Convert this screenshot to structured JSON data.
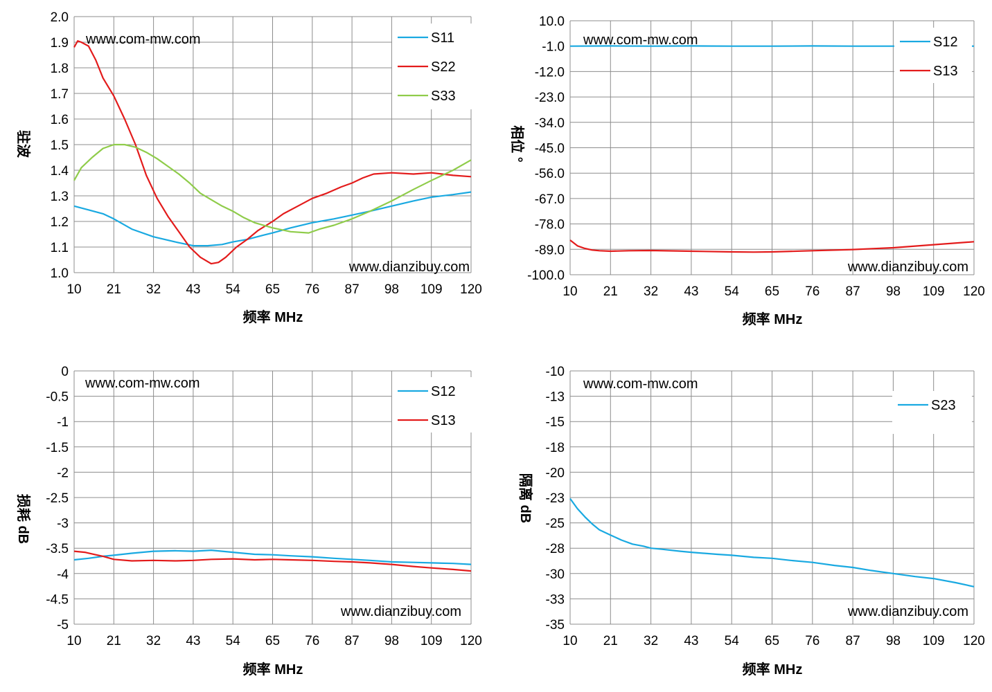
{
  "colors": {
    "cyan": "#19a9e1",
    "red": "#e31b1b",
    "green": "#8fcc4a",
    "grid": "#8c8c8c"
  },
  "watermarks": {
    "top": "www.com-mw.com",
    "bottom": "www.dianzibuy.com"
  },
  "chart_data": [
    {
      "type": "line",
      "title": "",
      "xlabel": "频率 MHz",
      "ylabel": "驻波",
      "x_ticks": [
        "10",
        "21",
        "32",
        "43",
        "54",
        "65",
        "76",
        "87",
        "98",
        "109",
        "120"
      ],
      "y_ticks": [
        "1.0",
        "1.1",
        "1.2",
        "1.3",
        "1.4",
        "1.5",
        "1.6",
        "1.7",
        "1.8",
        "1.9",
        "2.0"
      ],
      "xlim": [
        10,
        120
      ],
      "ylim": [
        1.0,
        2.0
      ],
      "grid": true,
      "legend": "top-right",
      "series": [
        {
          "name": "S11",
          "color": "#19a9e1",
          "x": [
            10,
            14,
            18,
            21,
            26,
            32,
            38,
            43,
            47,
            51,
            54,
            58,
            62,
            65,
            70,
            76,
            82,
            87,
            92,
            98,
            104,
            109,
            115,
            120
          ],
          "y": [
            1.26,
            1.245,
            1.23,
            1.21,
            1.17,
            1.14,
            1.12,
            1.105,
            1.105,
            1.11,
            1.12,
            1.13,
            1.145,
            1.155,
            1.175,
            1.195,
            1.21,
            1.225,
            1.24,
            1.26,
            1.28,
            1.295,
            1.305,
            1.315
          ]
        },
        {
          "name": "S22",
          "color": "#e31b1b",
          "x": [
            10,
            11,
            12,
            14,
            16,
            18,
            21,
            24,
            27,
            30,
            33,
            36,
            39,
            42,
            45,
            48,
            50,
            52,
            55,
            58,
            61,
            65,
            68,
            72,
            76,
            80,
            84,
            87,
            90,
            93,
            98,
            104,
            109,
            115,
            120
          ],
          "y": [
            1.88,
            1.905,
            1.9,
            1.885,
            1.83,
            1.76,
            1.69,
            1.6,
            1.5,
            1.38,
            1.29,
            1.22,
            1.16,
            1.1,
            1.06,
            1.035,
            1.04,
            1.06,
            1.1,
            1.13,
            1.165,
            1.2,
            1.23,
            1.26,
            1.29,
            1.31,
            1.335,
            1.35,
            1.37,
            1.385,
            1.39,
            1.385,
            1.39,
            1.38,
            1.375
          ]
        },
        {
          "name": "S33",
          "color": "#8fcc4a",
          "x": [
            10,
            12,
            15,
            18,
            21,
            24,
            27,
            30,
            33,
            36,
            39,
            42,
            45,
            48,
            51,
            54,
            57,
            60,
            65,
            70,
            75,
            78,
            82,
            87,
            92,
            98,
            104,
            109,
            115,
            120
          ],
          "y": [
            1.36,
            1.41,
            1.45,
            1.485,
            1.5,
            1.5,
            1.49,
            1.47,
            1.445,
            1.415,
            1.385,
            1.35,
            1.31,
            1.285,
            1.26,
            1.24,
            1.215,
            1.195,
            1.175,
            1.16,
            1.155,
            1.17,
            1.185,
            1.21,
            1.24,
            1.28,
            1.325,
            1.36,
            1.4,
            1.44
          ]
        }
      ]
    },
    {
      "type": "line",
      "title": "",
      "xlabel": "频率 MHz",
      "ylabel": "相位 °",
      "x_ticks": [
        "10",
        "21",
        "32",
        "43",
        "54",
        "65",
        "76",
        "87",
        "98",
        "109",
        "120"
      ],
      "y_ticks": [
        "-100.0",
        "-89.0",
        "-78.0",
        "-67.0",
        "-56.0",
        "-45.0",
        "-34.0",
        "-23.0",
        "-12.0",
        "-1.0",
        "10.0"
      ],
      "xlim": [
        10,
        120
      ],
      "ylim": [
        -100,
        10
      ],
      "grid": true,
      "legend": "top-right",
      "series": [
        {
          "name": "S12",
          "color": "#19a9e1",
          "x": [
            10,
            21,
            32,
            43,
            54,
            65,
            76,
            87,
            98,
            109,
            120
          ],
          "y": [
            -1.0,
            -0.9,
            -1.0,
            -0.9,
            -1.0,
            -1.0,
            -0.9,
            -1.0,
            -1.0,
            -0.9,
            -1.0
          ]
        },
        {
          "name": "S13",
          "color": "#e31b1b",
          "x": [
            10,
            12,
            14,
            16,
            18,
            21,
            26,
            32,
            43,
            54,
            60,
            65,
            76,
            87,
            98,
            109,
            120
          ],
          "y": [
            -85,
            -87.5,
            -88.6,
            -89.3,
            -89.6,
            -89.8,
            -89.6,
            -89.5,
            -89.8,
            -90.1,
            -90.2,
            -90.1,
            -89.6,
            -89.1,
            -88.3,
            -87.0,
            -85.7
          ]
        }
      ]
    },
    {
      "type": "line",
      "title": "",
      "xlabel": "频率 MHz",
      "ylabel": "损耗 dB",
      "x_ticks": [
        "10",
        "21",
        "32",
        "43",
        "54",
        "65",
        "76",
        "87",
        "98",
        "109",
        "120"
      ],
      "y_ticks": [
        "-5",
        "-4.5",
        "-4",
        "-3.5",
        "-3",
        "-2.5",
        "-2",
        "-1.5",
        "-1",
        "-0.5",
        "0"
      ],
      "xlim": [
        10,
        120
      ],
      "ylim": [
        -5,
        0
      ],
      "grid": true,
      "legend": "top-right",
      "series": [
        {
          "name": "S12",
          "color": "#19a9e1",
          "x": [
            10,
            14,
            18,
            21,
            26,
            32,
            38,
            43,
            48,
            54,
            60,
            65,
            70,
            76,
            82,
            87,
            92,
            98,
            104,
            109,
            115,
            120
          ],
          "y": [
            -3.73,
            -3.7,
            -3.66,
            -3.64,
            -3.6,
            -3.56,
            -3.55,
            -3.56,
            -3.54,
            -3.58,
            -3.62,
            -3.63,
            -3.65,
            -3.67,
            -3.7,
            -3.72,
            -3.74,
            -3.77,
            -3.78,
            -3.79,
            -3.8,
            -3.82
          ]
        },
        {
          "name": "S13",
          "color": "#e31b1b",
          "x": [
            10,
            13,
            16,
            18,
            21,
            26,
            32,
            38,
            43,
            48,
            54,
            60,
            65,
            70,
            76,
            82,
            87,
            92,
            98,
            104,
            109,
            115,
            120
          ],
          "y": [
            -3.56,
            -3.58,
            -3.63,
            -3.66,
            -3.72,
            -3.75,
            -3.74,
            -3.75,
            -3.74,
            -3.72,
            -3.71,
            -3.73,
            -3.72,
            -3.73,
            -3.74,
            -3.76,
            -3.77,
            -3.79,
            -3.82,
            -3.86,
            -3.89,
            -3.92,
            -3.95
          ]
        }
      ]
    },
    {
      "type": "line",
      "title": "",
      "xlabel": "频率 MHz",
      "ylabel": "隔离 dB",
      "x_ticks": [
        "10",
        "21",
        "32",
        "43",
        "54",
        "65",
        "76",
        "87",
        "98",
        "109",
        "120"
      ],
      "y_ticks": [
        "-35",
        "-33",
        "-30",
        "-28",
        "-25",
        "-23",
        "-20",
        "-18",
        "-15",
        "-13",
        "-10"
      ],
      "xlim": [
        10,
        120
      ],
      "ylim": [
        -35,
        -10
      ],
      "grid": true,
      "legend": "top-right",
      "series": [
        {
          "name": "S23",
          "color": "#19a9e1",
          "x": [
            10,
            12,
            14,
            16,
            18,
            21,
            24,
            27,
            30,
            32,
            35,
            40,
            43,
            50,
            54,
            60,
            65,
            70,
            76,
            82,
            87,
            92,
            98,
            104,
            109,
            115,
            120
          ],
          "y": [
            -22.6,
            -23.6,
            -24.4,
            -25.1,
            -25.7,
            -26.2,
            -26.7,
            -27.1,
            -27.3,
            -27.5,
            -27.6,
            -27.8,
            -27.9,
            -28.1,
            -28.2,
            -28.4,
            -28.5,
            -28.7,
            -28.9,
            -29.2,
            -29.4,
            -29.7,
            -30.0,
            -30.3,
            -30.5,
            -30.9,
            -31.3
          ]
        }
      ]
    }
  ]
}
